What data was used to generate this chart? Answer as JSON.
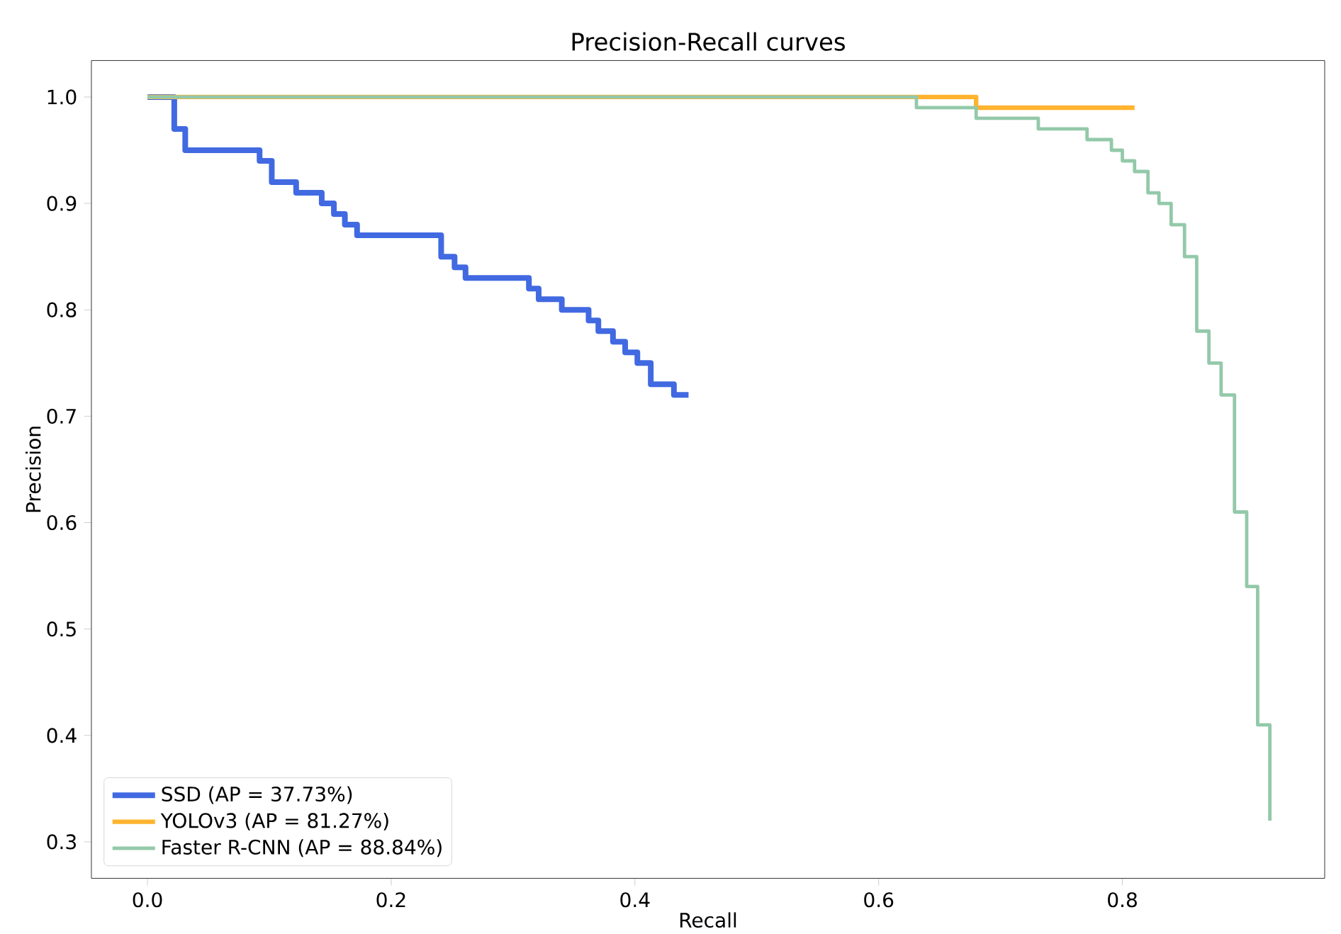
{
  "chart_data": {
    "type": "step",
    "title": "Precision-Recall curves",
    "xlabel": "Recall",
    "ylabel": "Precision",
    "xlim": [
      -0.046,
      0.966
    ],
    "ylim": [
      0.2657,
      1.0343
    ],
    "xticks": [
      {
        "value": 0,
        "label": "0.0"
      },
      0.2,
      0.4,
      0.6,
      0.8
    ],
    "yticks": [
      0.3,
      0.4,
      0.5,
      0.6,
      0.7,
      0.8,
      0.9,
      {
        "value": 1,
        "label": "1.0"
      }
    ],
    "grid": false,
    "legend": "bottom left",
    "marker": "none",
    "line_style": "solid",
    "series": [
      {
        "name": "SSD (AP = 37.73%)",
        "color": "#4169e1",
        "x": [
          0,
          0.022,
          0.031,
          0.092,
          0.102,
          0.122,
          0.143,
          0.153,
          0.162,
          0.172,
          0.241,
          0.252,
          0.261,
          0.313,
          0.321,
          0.34,
          0.362,
          0.37,
          0.382,
          0.392,
          0.402,
          0.413,
          0.432,
          0.444
        ],
        "values": [
          1.0,
          0.97,
          0.95,
          0.94,
          0.92,
          0.91,
          0.9,
          0.89,
          0.88,
          0.87,
          0.85,
          0.84,
          0.83,
          0.82,
          0.81,
          0.8,
          0.79,
          0.78,
          0.77,
          0.76,
          0.75,
          0.73,
          0.72,
          0.72
        ]
      },
      {
        "name": "YOLOv3 (AP = 81.27%)",
        "color": "#ffb32e",
        "x": [
          0,
          0.68,
          0.81
        ],
        "values": [
          1.0,
          0.99,
          0.99
        ]
      },
      {
        "name": "Faster R-CNN (AP = 88.84%)",
        "color": "#93c9a9",
        "x": [
          0,
          0.631,
          0.68,
          0.731,
          0.771,
          0.791,
          0.8,
          0.81,
          0.821,
          0.83,
          0.84,
          0.851,
          0.861,
          0.871,
          0.881,
          0.892,
          0.902,
          0.911,
          0.921
        ],
        "values": [
          1.0,
          0.99,
          0.98,
          0.97,
          0.96,
          0.95,
          0.94,
          0.93,
          0.91,
          0.9,
          0.88,
          0.85,
          0.78,
          0.75,
          0.72,
          0.61,
          0.54,
          0.41,
          0.32
        ]
      }
    ]
  }
}
